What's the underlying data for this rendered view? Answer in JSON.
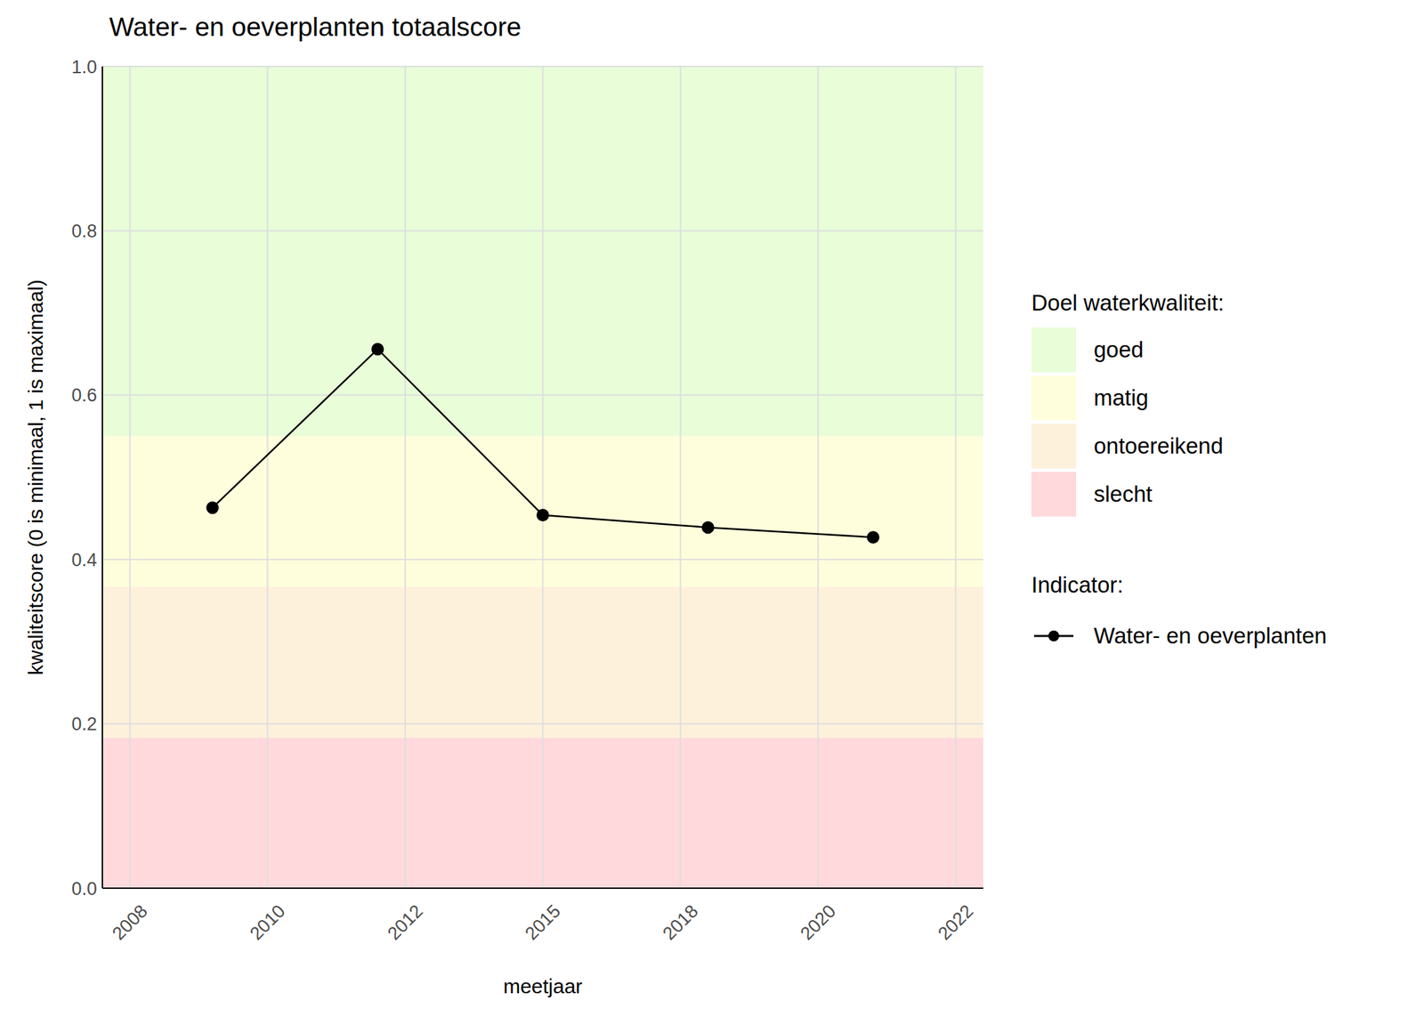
{
  "chart_data": {
    "type": "line",
    "title": "Water- en oeverplanten totaalscore",
    "x_label": "meetjaar",
    "y_label": "kwaliteitscore (0 is minimaal, 1 is maximaal)",
    "x": [
      2009,
      2012,
      2015,
      2018,
      2021
    ],
    "series": [
      {
        "name": "Water- en oeverplanten",
        "color": "#000000",
        "marker": "circle",
        "line_style": "solid",
        "values": [
          0.463,
          0.656,
          0.454,
          0.439,
          0.427
        ]
      }
    ],
    "xlim": [
      2007,
      2023
    ],
    "xticks": [
      {
        "value": 2007.5,
        "label": "2008"
      },
      2010,
      {
        "value": 2012.5,
        "label": "2012"
      },
      2015,
      {
        "value": 2017.5,
        "label": "2018"
      },
      2020,
      {
        "value": 2022.5,
        "label": "2022"
      }
    ],
    "ylim": [
      0,
      1
    ],
    "yticks": [
      {
        "value": 0,
        "label": "0.0"
      },
      0.2,
      0.4,
      0.6,
      0.8,
      {
        "value": 1,
        "label": "1.0"
      }
    ],
    "grid": true,
    "bands_title": "Doel waterkwaliteit:",
    "bands": [
      {
        "name": "goed",
        "from": 0.55,
        "to": 1,
        "color": "#e8fdd8"
      },
      {
        "name": "matig",
        "from": 0.367,
        "to": 0.55,
        "color": "#fffedc"
      },
      {
        "name": "ontoereikend",
        "from": 0.183,
        "to": 0.367,
        "color": "#fef1dc"
      },
      {
        "name": "slecht",
        "from": 0,
        "to": 0.183,
        "color": "#ffd9dc"
      }
    ],
    "legend_title": "Indicator:",
    "legend": "right"
  }
}
